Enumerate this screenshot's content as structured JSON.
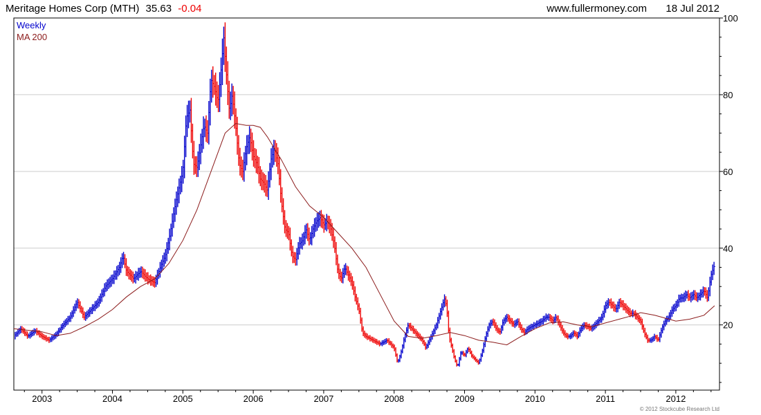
{
  "header": {
    "company": "Meritage Homes Corp (MTH)",
    "price": "35.63",
    "change": "-0.04",
    "source": "www.fullermoney.com",
    "date": "18 Jul 2012"
  },
  "legend": {
    "weekly": "Weekly",
    "ma": "MA 200"
  },
  "copyright": "© 2012 Stockcube Research Ltd",
  "colors": {
    "up": "#0000cc",
    "down": "#ee0000",
    "ma": "#8b1a1a",
    "grid": "#cccccc",
    "change": "#ee0000"
  },
  "chart_data": {
    "type": "line",
    "xlim": [
      2002.6,
      2012.62
    ],
    "ylim": [
      3,
      100
    ],
    "y_ticks": [
      20,
      40,
      60,
      80,
      100
    ],
    "x_ticks": [
      {
        "label": "2003",
        "value": 2003.0
      },
      {
        "label": "2004",
        "value": 2004.0
      },
      {
        "label": "2005",
        "value": 2005.0
      },
      {
        "label": "2006",
        "value": 2006.0
      },
      {
        "label": "2007",
        "value": 2007.0
      },
      {
        "label": "2008",
        "value": 2008.0
      },
      {
        "label": "2009",
        "value": 2009.0
      },
      {
        "label": "2010",
        "value": 2010.0
      },
      {
        "label": "2011",
        "value": 2011.0
      },
      {
        "label": "2012",
        "value": 2012.0
      }
    ],
    "grid": true,
    "legend_position": "top-left",
    "series": [
      {
        "name": "Weekly",
        "points": [
          [
            2002.6,
            17
          ],
          [
            2002.7,
            19
          ],
          [
            2002.8,
            17
          ],
          [
            2002.9,
            18.5
          ],
          [
            2003.0,
            17
          ],
          [
            2003.1,
            16
          ],
          [
            2003.2,
            17.5
          ],
          [
            2003.3,
            20
          ],
          [
            2003.4,
            22
          ],
          [
            2003.5,
            26
          ],
          [
            2003.55,
            24
          ],
          [
            2003.6,
            22
          ],
          [
            2003.7,
            24
          ],
          [
            2003.8,
            26
          ],
          [
            2003.9,
            30
          ],
          [
            2004.0,
            32
          ],
          [
            2004.1,
            35
          ],
          [
            2004.15,
            38
          ],
          [
            2004.2,
            34
          ],
          [
            2004.3,
            32
          ],
          [
            2004.4,
            34
          ],
          [
            2004.5,
            32
          ],
          [
            2004.6,
            31
          ],
          [
            2004.7,
            36
          ],
          [
            2004.75,
            38
          ],
          [
            2004.8,
            42
          ],
          [
            2004.9,
            52
          ],
          [
            2004.95,
            56
          ],
          [
            2005.0,
            60
          ],
          [
            2005.05,
            74
          ],
          [
            2005.1,
            76
          ],
          [
            2005.15,
            62
          ],
          [
            2005.2,
            61
          ],
          [
            2005.3,
            72
          ],
          [
            2005.35,
            70
          ],
          [
            2005.4,
            84
          ],
          [
            2005.45,
            82
          ],
          [
            2005.5,
            78
          ],
          [
            2005.55,
            88
          ],
          [
            2005.58,
            95
          ],
          [
            2005.62,
            85
          ],
          [
            2005.66,
            76
          ],
          [
            2005.7,
            80
          ],
          [
            2005.75,
            72
          ],
          [
            2005.8,
            62
          ],
          [
            2005.85,
            60
          ],
          [
            2005.9,
            66
          ],
          [
            2005.95,
            69
          ],
          [
            2006.0,
            64
          ],
          [
            2006.05,
            62
          ],
          [
            2006.1,
            58
          ],
          [
            2006.15,
            57
          ],
          [
            2006.2,
            55
          ],
          [
            2006.25,
            63
          ],
          [
            2006.3,
            66
          ],
          [
            2006.35,
            62
          ],
          [
            2006.4,
            52
          ],
          [
            2006.45,
            45
          ],
          [
            2006.5,
            44
          ],
          [
            2006.55,
            38
          ],
          [
            2006.6,
            37
          ],
          [
            2006.65,
            41
          ],
          [
            2006.7,
            42
          ],
          [
            2006.75,
            45
          ],
          [
            2006.8,
            42
          ],
          [
            2006.85,
            45
          ],
          [
            2006.9,
            47
          ],
          [
            2006.95,
            48
          ],
          [
            2007.0,
            46
          ],
          [
            2007.05,
            47
          ],
          [
            2007.1,
            45
          ],
          [
            2007.15,
            41
          ],
          [
            2007.2,
            34
          ],
          [
            2007.25,
            32
          ],
          [
            2007.3,
            35
          ],
          [
            2007.35,
            33
          ],
          [
            2007.4,
            31
          ],
          [
            2007.45,
            27
          ],
          [
            2007.5,
            24
          ],
          [
            2007.55,
            18
          ],
          [
            2007.6,
            17
          ],
          [
            2007.7,
            16
          ],
          [
            2007.8,
            15
          ],
          [
            2007.9,
            16
          ],
          [
            2008.0,
            14
          ],
          [
            2008.05,
            10
          ],
          [
            2008.1,
            13
          ],
          [
            2008.15,
            17
          ],
          [
            2008.2,
            20
          ],
          [
            2008.25,
            19
          ],
          [
            2008.3,
            18
          ],
          [
            2008.4,
            16
          ],
          [
            2008.45,
            14
          ],
          [
            2008.5,
            16
          ],
          [
            2008.55,
            18
          ],
          [
            2008.6,
            20
          ],
          [
            2008.65,
            23
          ],
          [
            2008.7,
            26
          ],
          [
            2008.72,
            27
          ],
          [
            2008.75,
            24
          ],
          [
            2008.78,
            17
          ],
          [
            2008.82,
            14
          ],
          [
            2008.86,
            11
          ],
          [
            2008.9,
            9
          ],
          [
            2008.95,
            13
          ],
          [
            2009.0,
            12
          ],
          [
            2009.05,
            14
          ],
          [
            2009.1,
            12
          ],
          [
            2009.15,
            11
          ],
          [
            2009.2,
            10
          ],
          [
            2009.25,
            13
          ],
          [
            2009.3,
            17
          ],
          [
            2009.35,
            20
          ],
          [
            2009.4,
            21
          ],
          [
            2009.45,
            19
          ],
          [
            2009.5,
            18
          ],
          [
            2009.55,
            21
          ],
          [
            2009.6,
            22
          ],
          [
            2009.65,
            21
          ],
          [
            2009.7,
            20
          ],
          [
            2009.75,
            21
          ],
          [
            2009.8,
            19
          ],
          [
            2009.85,
            18
          ],
          [
            2009.9,
            19
          ],
          [
            2010.0,
            20
          ],
          [
            2010.1,
            21
          ],
          [
            2010.15,
            22
          ],
          [
            2010.2,
            22
          ],
          [
            2010.25,
            21
          ],
          [
            2010.3,
            22
          ],
          [
            2010.35,
            20
          ],
          [
            2010.4,
            18
          ],
          [
            2010.45,
            17
          ],
          [
            2010.5,
            17
          ],
          [
            2010.55,
            18
          ],
          [
            2010.6,
            17
          ],
          [
            2010.65,
            19
          ],
          [
            2010.7,
            20
          ],
          [
            2010.8,
            19
          ],
          [
            2010.85,
            20
          ],
          [
            2010.9,
            21
          ],
          [
            2010.95,
            22
          ],
          [
            2011.0,
            25
          ],
          [
            2011.05,
            26
          ],
          [
            2011.1,
            25
          ],
          [
            2011.15,
            24
          ],
          [
            2011.2,
            26
          ],
          [
            2011.25,
            25
          ],
          [
            2011.3,
            24
          ],
          [
            2011.35,
            23
          ],
          [
            2011.4,
            23
          ],
          [
            2011.45,
            22
          ],
          [
            2011.5,
            21
          ],
          [
            2011.55,
            18
          ],
          [
            2011.6,
            16
          ],
          [
            2011.65,
            16
          ],
          [
            2011.7,
            17
          ],
          [
            2011.75,
            16
          ],
          [
            2011.8,
            19
          ],
          [
            2011.85,
            21
          ],
          [
            2011.9,
            22
          ],
          [
            2011.95,
            24
          ],
          [
            2012.0,
            25
          ],
          [
            2012.05,
            27
          ],
          [
            2012.1,
            27
          ],
          [
            2012.15,
            28
          ],
          [
            2012.2,
            27
          ],
          [
            2012.25,
            28
          ],
          [
            2012.3,
            27
          ],
          [
            2012.35,
            28
          ],
          [
            2012.4,
            29
          ],
          [
            2012.45,
            27
          ],
          [
            2012.5,
            33
          ],
          [
            2012.55,
            35.63
          ]
        ]
      },
      {
        "name": "MA 200",
        "points": [
          [
            2002.6,
            19
          ],
          [
            2002.8,
            18.6
          ],
          [
            2003.0,
            18.2
          ],
          [
            2003.2,
            17.2
          ],
          [
            2003.4,
            17.8
          ],
          [
            2003.6,
            19.5
          ],
          [
            2003.8,
            21.5
          ],
          [
            2004.0,
            24
          ],
          [
            2004.2,
            27.3
          ],
          [
            2004.4,
            30
          ],
          [
            2004.6,
            32
          ],
          [
            2004.8,
            36
          ],
          [
            2005.0,
            42
          ],
          [
            2005.2,
            50
          ],
          [
            2005.4,
            60
          ],
          [
            2005.6,
            70
          ],
          [
            2005.75,
            72.5
          ],
          [
            2005.9,
            72
          ],
          [
            2006.0,
            72
          ],
          [
            2006.1,
            71.5
          ],
          [
            2006.2,
            69
          ],
          [
            2006.4,
            63
          ],
          [
            2006.6,
            56
          ],
          [
            2006.8,
            51
          ],
          [
            2007.0,
            48
          ],
          [
            2007.2,
            44
          ],
          [
            2007.4,
            40
          ],
          [
            2007.6,
            35
          ],
          [
            2007.8,
            28
          ],
          [
            2008.0,
            21
          ],
          [
            2008.2,
            17
          ],
          [
            2008.4,
            16.5
          ],
          [
            2008.6,
            17.2
          ],
          [
            2008.8,
            18
          ],
          [
            2009.0,
            17.2
          ],
          [
            2009.2,
            16
          ],
          [
            2009.4,
            15.5
          ],
          [
            2009.6,
            14.8
          ],
          [
            2009.8,
            17
          ],
          [
            2010.0,
            19
          ],
          [
            2010.2,
            20.5
          ],
          [
            2010.4,
            20.8
          ],
          [
            2010.6,
            20
          ],
          [
            2010.8,
            19.5
          ],
          [
            2011.0,
            20.5
          ],
          [
            2011.2,
            21.5
          ],
          [
            2011.4,
            22.5
          ],
          [
            2011.5,
            23.2
          ],
          [
            2011.7,
            22.5
          ],
          [
            2011.9,
            21.5
          ],
          [
            2012.0,
            21
          ],
          [
            2012.2,
            21.5
          ],
          [
            2012.4,
            22.5
          ],
          [
            2012.55,
            25
          ]
        ]
      }
    ]
  }
}
